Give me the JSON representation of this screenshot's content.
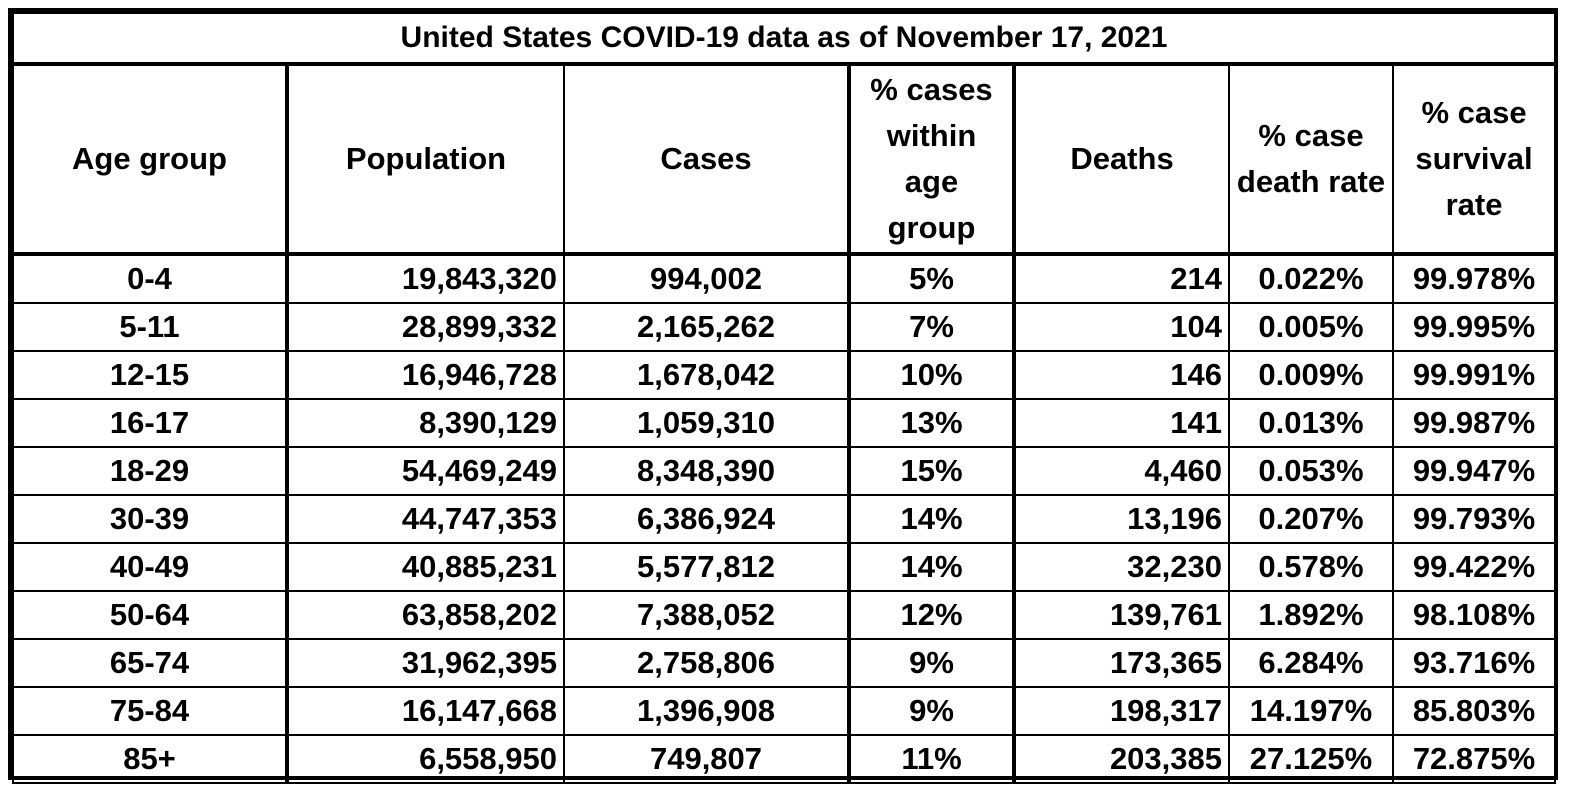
{
  "title": "United States COVID-19 data as of November 17, 2021",
  "columns": [
    "Age group",
    "Population",
    "Cases",
    "% cases within age group",
    "Deaths",
    "% case death rate",
    "% case survival rate"
  ],
  "rows": [
    [
      "0-4",
      "19,843,320",
      "994,002",
      "5%",
      "214",
      "0.022%",
      "99.978%"
    ],
    [
      "5-11",
      "28,899,332",
      "2,165,262",
      "7%",
      "104",
      "0.005%",
      "99.995%"
    ],
    [
      "12-15",
      "16,946,728",
      "1,678,042",
      "10%",
      "146",
      "0.009%",
      "99.991%"
    ],
    [
      "16-17",
      "8,390,129",
      "1,059,310",
      "13%",
      "141",
      "0.013%",
      "99.987%"
    ],
    [
      "18-29",
      "54,469,249",
      "8,348,390",
      "15%",
      "4,460",
      "0.053%",
      "99.947%"
    ],
    [
      "30-39",
      "44,747,353",
      "6,386,924",
      "14%",
      "13,196",
      "0.207%",
      "99.793%"
    ],
    [
      "40-49",
      "40,885,231",
      "5,577,812",
      "14%",
      "32,230",
      "0.578%",
      "99.422%"
    ],
    [
      "50-64",
      "63,858,202",
      "7,388,052",
      "12%",
      "139,761",
      "1.892%",
      "98.108%"
    ],
    [
      "65-74",
      "31,962,395",
      "2,758,806",
      "9%",
      "173,365",
      "6.284%",
      "93.716%"
    ],
    [
      "75-84",
      "16,147,668",
      "1,396,908",
      "9%",
      "198,317",
      "14.197%",
      "85.803%"
    ],
    [
      "85+",
      "6,558,950",
      "749,807",
      "11%",
      "203,385",
      "27.125%",
      "72.875%"
    ]
  ]
}
